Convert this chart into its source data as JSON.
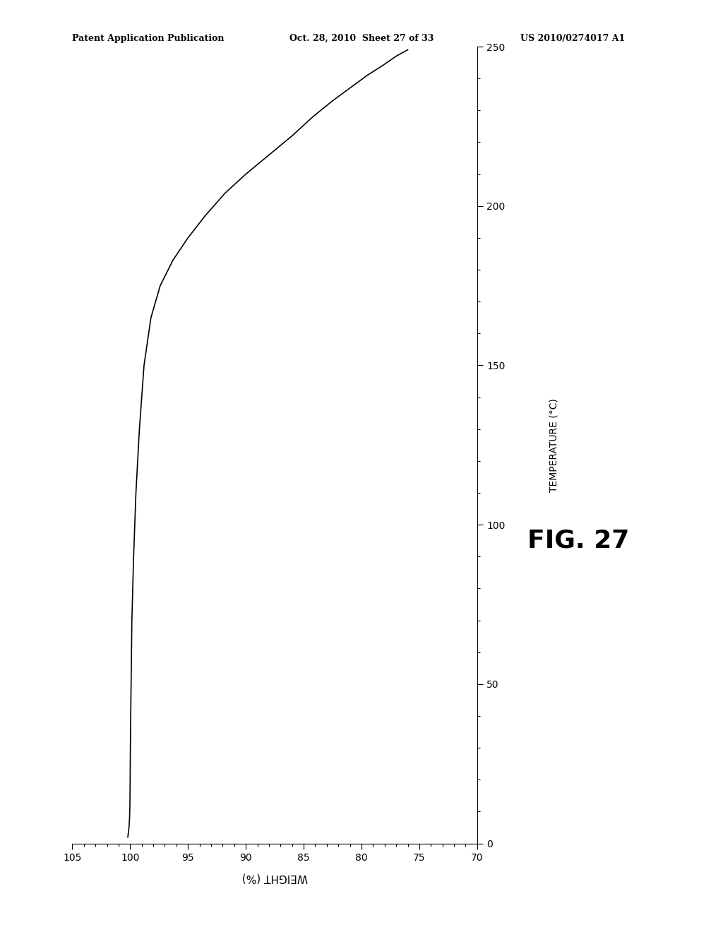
{
  "header_left": "Patent Application Publication",
  "header_mid": "Oct. 28, 2010  Sheet 27 of 33",
  "header_right": "US 2010/0274017 A1",
  "xlabel": "WEIGHT (%)",
  "ylabel": "TEMPERATURE (°C)",
  "fig_label": "FIG. 27",
  "x_min": 70,
  "x_max": 105,
  "y_min": 0,
  "y_max": 250,
  "x_ticks": [
    70,
    75,
    80,
    85,
    90,
    95,
    100,
    105
  ],
  "y_ticks": [
    0,
    50,
    100,
    150,
    200,
    250
  ],
  "background_color": "#ffffff",
  "line_color": "#000000",
  "curve_x": [
    100.2,
    100.1,
    100.05,
    100.02,
    100.0,
    99.98,
    99.95,
    99.9,
    99.85,
    99.7,
    99.5,
    99.2,
    98.8,
    98.2,
    97.4,
    96.3,
    95.0,
    93.5,
    91.8,
    90.0,
    88.0,
    86.0,
    84.2,
    82.5,
    81.0,
    79.5,
    78.2,
    77.0,
    76.0
  ],
  "curve_y": [
    2,
    5,
    8,
    12,
    20,
    30,
    40,
    55,
    70,
    90,
    110,
    130,
    150,
    165,
    175,
    183,
    190,
    197,
    204,
    210,
    216,
    222,
    228,
    233,
    237,
    241,
    244,
    247,
    249
  ]
}
